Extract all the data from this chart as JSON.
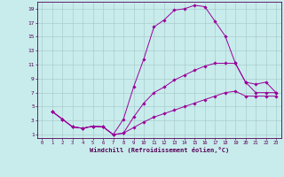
{
  "xlabel": "Windchill (Refroidissement éolien,°C)",
  "bg_color": "#c8ecec",
  "line_color": "#990099",
  "grid_color": "#aacccc",
  "axis_color": "#550055",
  "text_color": "#550055",
  "xlim": [
    -0.5,
    23.5
  ],
  "ylim": [
    0.5,
    20.0
  ],
  "xticks": [
    0,
    1,
    2,
    3,
    4,
    5,
    6,
    7,
    8,
    9,
    10,
    11,
    12,
    13,
    14,
    15,
    16,
    17,
    18,
    19,
    20,
    21,
    22,
    23
  ],
  "yticks": [
    1,
    3,
    5,
    7,
    9,
    11,
    13,
    15,
    17,
    19
  ],
  "line1_x": [
    1,
    2,
    3,
    4,
    5,
    6,
    7,
    8,
    9,
    10,
    11,
    12,
    13,
    14,
    15,
    16,
    17,
    18,
    19,
    20,
    21,
    22,
    23
  ],
  "line1_y": [
    4.3,
    3.2,
    2.1,
    1.9,
    2.2,
    2.1,
    1.0,
    3.2,
    7.8,
    11.8,
    16.4,
    17.4,
    18.8,
    19.0,
    19.5,
    19.3,
    17.2,
    15.1,
    11.2,
    8.5,
    7.0,
    7.0,
    7.0
  ],
  "line2_x": [
    1,
    2,
    3,
    4,
    5,
    6,
    7,
    8,
    9,
    10,
    11,
    12,
    13,
    14,
    15,
    16,
    17,
    18,
    19,
    20,
    21,
    22,
    23
  ],
  "line2_y": [
    4.3,
    3.2,
    2.1,
    1.9,
    2.2,
    2.1,
    1.0,
    1.2,
    3.5,
    5.5,
    7.0,
    7.8,
    8.8,
    9.5,
    10.2,
    10.8,
    11.2,
    11.2,
    11.2,
    8.5,
    8.2,
    8.5,
    7.0
  ],
  "line3_x": [
    1,
    2,
    3,
    4,
    5,
    6,
    7,
    8,
    9,
    10,
    11,
    12,
    13,
    14,
    15,
    16,
    17,
    18,
    19,
    20,
    21,
    22,
    23
  ],
  "line3_y": [
    4.3,
    3.2,
    2.1,
    1.9,
    2.2,
    2.1,
    1.0,
    1.2,
    2.0,
    2.8,
    3.5,
    4.0,
    4.5,
    5.0,
    5.5,
    6.0,
    6.5,
    7.0,
    7.2,
    6.5,
    6.5,
    6.5,
    6.5
  ]
}
